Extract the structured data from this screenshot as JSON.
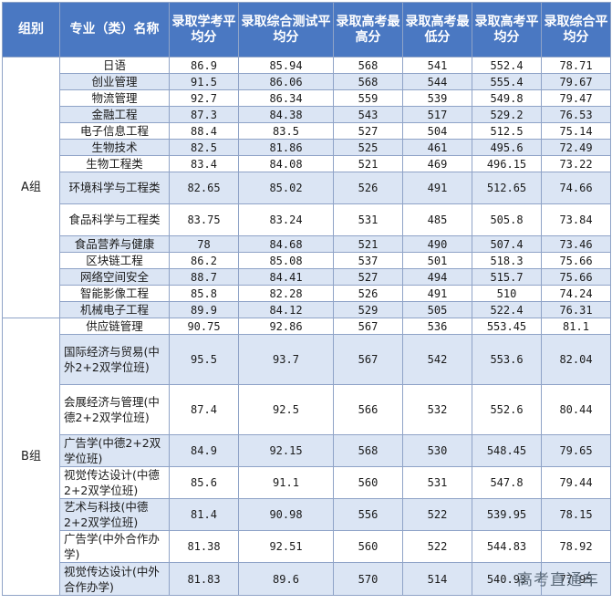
{
  "headers": {
    "group": "组别",
    "major": "专业（类）名称",
    "xueye": "录取学考平均分",
    "zonghe_test": "录取综合测试平均分",
    "gaokao_max": "录取高考最高分",
    "gaokao_min": "录取高考最低分",
    "gaokao_avg": "录取高考平均分",
    "zonghe_avg": "录取综合平均分"
  },
  "groups": {
    "a": "A组",
    "b": "B组"
  },
  "rows": [
    {
      "major": "日语",
      "xueye": "86.9",
      "test": "85.94",
      "max": "568",
      "min": "541",
      "avg": "552.4",
      "comp": "78.71"
    },
    {
      "major": "创业管理",
      "xueye": "91.5",
      "test": "86.06",
      "max": "568",
      "min": "544",
      "avg": "555.4",
      "comp": "79.67"
    },
    {
      "major": "物流管理",
      "xueye": "92.7",
      "test": "86.34",
      "max": "559",
      "min": "539",
      "avg": "549.8",
      "comp": "79.47"
    },
    {
      "major": "金融工程",
      "xueye": "87.3",
      "test": "84.38",
      "max": "543",
      "min": "517",
      "avg": "529.2",
      "comp": "76.53"
    },
    {
      "major": "电子信息工程",
      "xueye": "88.4",
      "test": "83.5",
      "max": "527",
      "min": "504",
      "avg": "512.5",
      "comp": "75.14"
    },
    {
      "major": "生物技术",
      "xueye": "82.5",
      "test": "81.86",
      "max": "525",
      "min": "461",
      "avg": "495.6",
      "comp": "72.49"
    },
    {
      "major": "生物工程类",
      "xueye": "83.4",
      "test": "84.08",
      "max": "521",
      "min": "469",
      "avg": "496.15",
      "comp": "73.22"
    },
    {
      "major": "环境科学与工程类",
      "xueye": "82.65",
      "test": "85.02",
      "max": "526",
      "min": "491",
      "avg": "512.65",
      "comp": "74.66"
    },
    {
      "major": "食品科学与工程类",
      "xueye": "83.75",
      "test": "83.24",
      "max": "531",
      "min": "485",
      "avg": "505.8",
      "comp": "73.84"
    },
    {
      "major": "食品营养与健康",
      "xueye": "78",
      "test": "84.68",
      "max": "521",
      "min": "490",
      "avg": "507.4",
      "comp": "73.46"
    },
    {
      "major": "区块链工程",
      "xueye": "86.2",
      "test": "85.08",
      "max": "537",
      "min": "501",
      "avg": "518.3",
      "comp": "75.66"
    },
    {
      "major": "网络空间安全",
      "xueye": "88.7",
      "test": "84.41",
      "max": "527",
      "min": "494",
      "avg": "515.7",
      "comp": "75.66"
    },
    {
      "major": "智能影像工程",
      "xueye": "85.8",
      "test": "82.28",
      "max": "526",
      "min": "491",
      "avg": "510",
      "comp": "74.24"
    },
    {
      "major": "机械电子工程",
      "xueye": "89.9",
      "test": "84.12",
      "max": "529",
      "min": "505",
      "avg": "522.4",
      "comp": "76.31"
    },
    {
      "major": "供应链管理",
      "xueye": "90.75",
      "test": "92.86",
      "max": "567",
      "min": "536",
      "avg": "553.45",
      "comp": "81.1"
    },
    {
      "major": "国际经济与贸易(中外2+2双学位班)",
      "xueye": "95.5",
      "test": "93.7",
      "max": "567",
      "min": "542",
      "avg": "553.6",
      "comp": "82.04"
    },
    {
      "major": "会展经济与管理(中德2+2双学位班)",
      "xueye": "87.4",
      "test": "92.5",
      "max": "566",
      "min": "532",
      "avg": "552.6",
      "comp": "80.44"
    },
    {
      "major": "广告学(中德2+2双学位班)",
      "xueye": "84.9",
      "test": "92.15",
      "max": "568",
      "min": "530",
      "avg": "548.45",
      "comp": "79.65"
    },
    {
      "major": "视觉传达设计(中德2+2双学位班)",
      "xueye": "85.6",
      "test": "91.1",
      "max": "560",
      "min": "531",
      "avg": "547.8",
      "comp": "79.44"
    },
    {
      "major": "艺术与科技(中德2+2双学位班)",
      "xueye": "81.4",
      "test": "90.98",
      "max": "556",
      "min": "522",
      "avg": "539.95",
      "comp": "78.15"
    },
    {
      "major": "广告学(中外合作办学)",
      "xueye": "81.38",
      "test": "92.51",
      "max": "560",
      "min": "522",
      "avg": "544.83",
      "comp": "78.92"
    },
    {
      "major": "视觉传达设计(中外合作办学)",
      "xueye": "81.83",
      "test": "89.6",
      "max": "570",
      "min": "514",
      "avg": "540.93",
      "comp": "77.95"
    }
  ],
  "watermark": "高考直通车"
}
